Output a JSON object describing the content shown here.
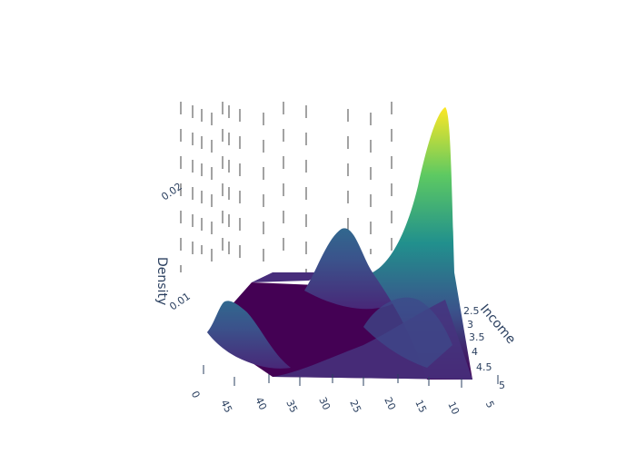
{
  "chart_data": {
    "type": "surface",
    "title": "",
    "colorscale": "viridis",
    "colors": [
      "#440154",
      "#3b528b",
      "#21908d",
      "#5dc962",
      "#fde725"
    ],
    "axes": {
      "x": {
        "title": "",
        "ticks": [
          "0",
          "45",
          "40",
          "35",
          "30",
          "25",
          "20",
          "15",
          "10",
          "5"
        ]
      },
      "y": {
        "title": "Income",
        "ticks": [
          "2.5",
          "3",
          "3.5",
          "4",
          "4.5",
          "5"
        ]
      },
      "z": {
        "title": "Density",
        "ticks": [
          "0.01",
          "0.02"
        ],
        "range": [
          0,
          0.031
        ]
      }
    },
    "x_values": [
      45,
      40,
      35,
      30,
      25,
      20,
      15,
      10,
      5
    ],
    "back_edge_density": [
      0.0085,
      0.0095,
      0.01,
      0.0103,
      0.014,
      0.01,
      0.015,
      0.03,
      0.001
    ],
    "front_edge_density": [
      0.001,
      0.0008,
      0.0006,
      0.0005,
      0.0004,
      0.0004,
      0.0004,
      0.0004,
      0.0004
    ],
    "peaks": [
      {
        "x": 45,
        "density": 0.01
      },
      {
        "x": 23,
        "density": 0.017
      },
      {
        "x": 7,
        "density": 0.03
      }
    ],
    "grid": true,
    "legend": "none"
  }
}
